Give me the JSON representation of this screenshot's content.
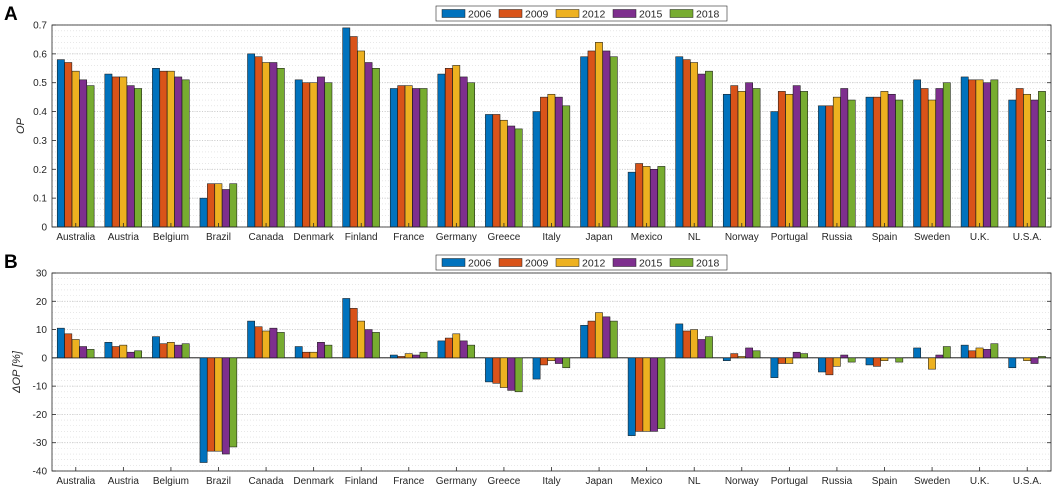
{
  "chart_data": [
    {
      "type": "bar",
      "panel": "A",
      "title": "",
      "xlabel": "",
      "ylabel": "OP",
      "ylim": [
        0,
        0.7
      ],
      "yticks": [
        "0",
        "0.1",
        "0.2",
        "0.3",
        "0.4",
        "0.5",
        "0.6",
        "0.7"
      ],
      "grid": true,
      "legend_position": "top-center",
      "categories": [
        "Australia",
        "Austria",
        "Belgium",
        "Brazil",
        "Canada",
        "Denmark",
        "Finland",
        "France",
        "Germany",
        "Greece",
        "Italy",
        "Japan",
        "Mexico",
        "NL",
        "Norway",
        "Portugal",
        "Russia",
        "Spain",
        "Sweden",
        "U.K.",
        "U.S.A."
      ],
      "series": [
        {
          "name": "2006",
          "color": "#0072BD",
          "values": [
            0.58,
            0.53,
            0.55,
            0.1,
            0.6,
            0.51,
            0.69,
            0.48,
            0.53,
            0.39,
            0.4,
            0.59,
            0.19,
            0.59,
            0.46,
            0.4,
            0.42,
            0.45,
            0.51,
            0.52,
            0.44
          ]
        },
        {
          "name": "2009",
          "color": "#D95319",
          "values": [
            0.57,
            0.52,
            0.54,
            0.15,
            0.59,
            0.5,
            0.66,
            0.49,
            0.55,
            0.39,
            0.45,
            0.61,
            0.22,
            0.58,
            0.49,
            0.47,
            0.42,
            0.45,
            0.48,
            0.51,
            0.48
          ]
        },
        {
          "name": "2012",
          "color": "#EDB120",
          "values": [
            0.54,
            0.52,
            0.54,
            0.15,
            0.57,
            0.5,
            0.61,
            0.49,
            0.56,
            0.37,
            0.46,
            0.64,
            0.21,
            0.57,
            0.47,
            0.46,
            0.45,
            0.47,
            0.44,
            0.51,
            0.46
          ]
        },
        {
          "name": "2015",
          "color": "#7E2F8E",
          "values": [
            0.51,
            0.49,
            0.52,
            0.13,
            0.57,
            0.52,
            0.57,
            0.48,
            0.52,
            0.35,
            0.45,
            0.61,
            0.2,
            0.53,
            0.5,
            0.49,
            0.48,
            0.46,
            0.48,
            0.5,
            0.44
          ]
        },
        {
          "name": "2018",
          "color": "#77AC30",
          "values": [
            0.49,
            0.48,
            0.51,
            0.15,
            0.55,
            0.5,
            0.55,
            0.48,
            0.5,
            0.34,
            0.42,
            0.59,
            0.21,
            0.54,
            0.48,
            0.47,
            0.44,
            0.44,
            0.5,
            0.51,
            0.47
          ]
        }
      ]
    },
    {
      "type": "bar",
      "panel": "B",
      "title": "",
      "xlabel": "",
      "ylabel": "ΔOP [%]",
      "ylim": [
        -40,
        30
      ],
      "yticks": [
        "-40",
        "-30",
        "-20",
        "-10",
        "0",
        "10",
        "20",
        "30"
      ],
      "grid": true,
      "legend_position": "top-center",
      "categories": [
        "Australia",
        "Austria",
        "Belgium",
        "Brazil",
        "Canada",
        "Denmark",
        "Finland",
        "France",
        "Germany",
        "Greece",
        "Italy",
        "Japan",
        "Mexico",
        "NL",
        "Norway",
        "Portugal",
        "Russia",
        "Spain",
        "Sweden",
        "U.K.",
        "U.S.A."
      ],
      "series": [
        {
          "name": "2006",
          "color": "#0072BD",
          "values": [
            10.5,
            5.5,
            7.5,
            -37,
            13,
            4,
            21,
            1,
            6,
            -8.5,
            -7.5,
            11.5,
            -27.5,
            12,
            -1,
            -7,
            -5,
            -2.5,
            3.5,
            4.5,
            -3.5
          ]
        },
        {
          "name": "2009",
          "color": "#D95319",
          "values": [
            8.5,
            4,
            5,
            -33,
            11,
            2,
            17.5,
            0.5,
            7,
            -9,
            -2.5,
            13,
            -26,
            9.5,
            1.5,
            -2,
            -6,
            -3,
            0,
            2.5,
            0
          ]
        },
        {
          "name": "2012",
          "color": "#EDB120",
          "values": [
            6.5,
            4.5,
            5.5,
            -33,
            9.5,
            2,
            13,
            1.5,
            8.5,
            -10.5,
            -1,
            16,
            -26,
            10,
            0.5,
            -2,
            -3,
            -1,
            -4,
            3.5,
            -1
          ]
        },
        {
          "name": "2015",
          "color": "#7E2F8E",
          "values": [
            4,
            2,
            4.5,
            -34,
            10.5,
            5.5,
            10,
            1,
            6,
            -11.5,
            -2,
            14.5,
            -26,
            6.5,
            3.5,
            2,
            1,
            0,
            1,
            3,
            -2
          ]
        },
        {
          "name": "2018",
          "color": "#77AC30",
          "values": [
            3,
            2.5,
            5,
            -31.5,
            9,
            4.5,
            9,
            2,
            4.5,
            -12,
            -3.5,
            13,
            -25,
            7.5,
            2.5,
            1.5,
            -1.5,
            -1.5,
            4,
            5,
            0.5
          ]
        }
      ]
    }
  ]
}
